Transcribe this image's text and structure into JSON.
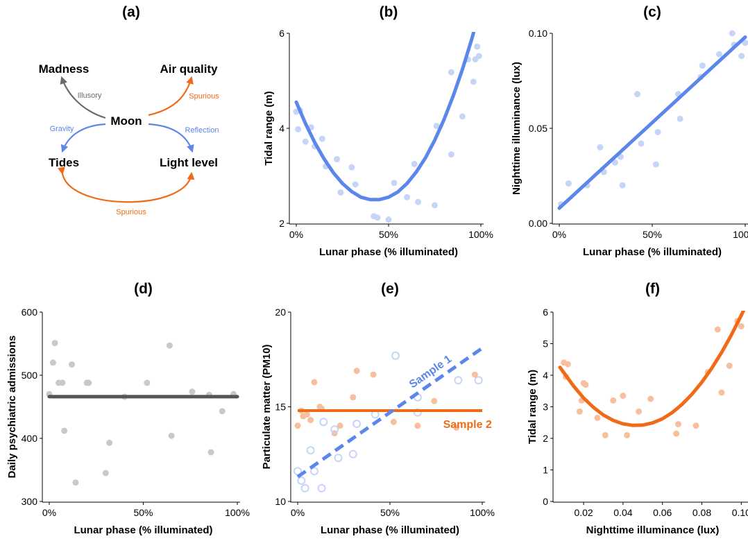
{
  "colors": {
    "blue": "#5b86ec",
    "blue_point": "#c5d4f7",
    "orange": "#f06a18",
    "orange_point": "#f8bf9e",
    "gray_line": "#555555",
    "gray_arrow": "#6b6b6b",
    "gray_point": "#c9c9c9"
  },
  "diagram": {
    "title": "(a)",
    "nodes": {
      "madness": "Madness",
      "air_quality": "Air quality",
      "moon": "Moon",
      "tides": "Tides",
      "light_level": "Light level"
    },
    "edges": {
      "illusory": "Illusory",
      "spurious_air": "Spurious",
      "gravity": "Gravity",
      "reflection": "Reflection",
      "spurious_bottom": "Spurious"
    }
  },
  "chart_data": [
    {
      "id": "b",
      "type": "scatter",
      "title": "(b)",
      "xlabel": "Lunar phase (% illuminated)",
      "ylabel": "Tidal range (m)",
      "xlim": [
        0,
        1
      ],
      "ylim": [
        2,
        6
      ],
      "xticks": [
        0,
        0.5,
        1
      ],
      "xtick_labels": [
        "0%",
        "50%",
        "100%"
      ],
      "yticks": [
        2,
        4,
        6
      ],
      "ytick_labels": [
        "2",
        "4",
        "6"
      ],
      "points": [
        [
          0.0,
          4.35
        ],
        [
          0.02,
          4.38
        ],
        [
          0.01,
          3.98
        ],
        [
          0.05,
          3.72
        ],
        [
          0.08,
          4.02
        ],
        [
          0.1,
          3.62
        ],
        [
          0.14,
          3.78
        ],
        [
          0.16,
          3.2
        ],
        [
          0.22,
          3.35
        ],
        [
          0.24,
          2.65
        ],
        [
          0.3,
          3.18
        ],
        [
          0.32,
          2.82
        ],
        [
          0.42,
          2.15
        ],
        [
          0.44,
          2.12
        ],
        [
          0.5,
          2.08
        ],
        [
          0.53,
          2.85
        ],
        [
          0.6,
          2.55
        ],
        [
          0.64,
          3.25
        ],
        [
          0.66,
          2.45
        ],
        [
          0.75,
          2.38
        ],
        [
          0.76,
          4.05
        ],
        [
          0.84,
          3.45
        ],
        [
          0.84,
          5.18
        ],
        [
          0.9,
          4.25
        ],
        [
          0.93,
          5.45
        ],
        [
          0.96,
          4.98
        ],
        [
          0.97,
          5.45
        ],
        [
          0.98,
          5.72
        ],
        [
          0.99,
          5.52
        ]
      ],
      "series": [
        {
          "kind": "curve",
          "x": [
            0,
            0.05,
            0.1,
            0.15,
            0.2,
            0.25,
            0.3,
            0.35,
            0.4,
            0.45,
            0.5,
            0.55,
            0.6,
            0.65,
            0.7,
            0.75,
            0.8,
            0.85,
            0.9,
            0.95,
            1.0
          ],
          "y": [
            4.55,
            4.1,
            3.7,
            3.36,
            3.07,
            2.84,
            2.67,
            2.55,
            2.5,
            2.5,
            2.55,
            2.66,
            2.84,
            3.08,
            3.38,
            3.75,
            4.18,
            4.68,
            5.24,
            5.87,
            6.56
          ]
        }
      ]
    },
    {
      "id": "c",
      "type": "scatter",
      "title": "(c)",
      "xlabel": "Lunar phase (% illuminated)",
      "ylabel": "Nighttime illuminance (lux)",
      "xlim": [
        0,
        1
      ],
      "ylim": [
        0,
        0.1
      ],
      "xticks": [
        0,
        0.5,
        1
      ],
      "xtick_labels": [
        "0%",
        "50%",
        "100%"
      ],
      "yticks": [
        0,
        0.05,
        0.1
      ],
      "ytick_labels": [
        "0.00",
        "0.05",
        "0.10"
      ],
      "points": [
        [
          0.01,
          0.01
        ],
        [
          0.05,
          0.021
        ],
        [
          0.15,
          0.02
        ],
        [
          0.22,
          0.04
        ],
        [
          0.24,
          0.027
        ],
        [
          0.3,
          0.032
        ],
        [
          0.33,
          0.035
        ],
        [
          0.34,
          0.02
        ],
        [
          0.42,
          0.068
        ],
        [
          0.44,
          0.042
        ],
        [
          0.52,
          0.031
        ],
        [
          0.53,
          0.048
        ],
        [
          0.64,
          0.068
        ],
        [
          0.65,
          0.055
        ],
        [
          0.76,
          0.077
        ],
        [
          0.77,
          0.083
        ],
        [
          0.86,
          0.089
        ],
        [
          0.93,
          0.1
        ],
        [
          0.94,
          0.094
        ],
        [
          0.98,
          0.088
        ],
        [
          1.0,
          0.095
        ]
      ],
      "series": [
        {
          "kind": "line",
          "x": [
            0,
            1
          ],
          "y": [
            0.008,
            0.098
          ]
        }
      ]
    },
    {
      "id": "d",
      "type": "scatter",
      "title": "(d)",
      "xlabel": "Lunar phase (% illuminated)",
      "ylabel": "Daily psychiatric admissions",
      "xlim": [
        0,
        1
      ],
      "ylim": [
        300,
        600
      ],
      "xticks": [
        0,
        0.5,
        1
      ],
      "xtick_labels": [
        "0%",
        "50%",
        "100%"
      ],
      "yticks": [
        300,
        400,
        500,
        600
      ],
      "ytick_labels": [
        "300",
        "400",
        "500",
        "600"
      ],
      "points": [
        [
          0.0,
          470
        ],
        [
          0.02,
          520
        ],
        [
          0.03,
          551
        ],
        [
          0.05,
          488
        ],
        [
          0.07,
          488
        ],
        [
          0.08,
          412
        ],
        [
          0.12,
          517
        ],
        [
          0.14,
          330
        ],
        [
          0.2,
          488
        ],
        [
          0.21,
          488
        ],
        [
          0.3,
          345
        ],
        [
          0.32,
          393
        ],
        [
          0.4,
          466
        ],
        [
          0.52,
          488
        ],
        [
          0.64,
          547
        ],
        [
          0.65,
          404
        ],
        [
          0.76,
          474
        ],
        [
          0.85,
          469
        ],
        [
          0.86,
          378
        ],
        [
          0.92,
          443
        ],
        [
          0.98,
          470
        ]
      ],
      "series": [
        {
          "kind": "line",
          "x": [
            0,
            1
          ],
          "y": [
            466,
            466
          ]
        }
      ]
    },
    {
      "id": "e",
      "type": "scatter",
      "title": "(e)",
      "xlabel": "Lunar phase (% illuminated)",
      "ylabel": "Particulate matter (PM10)",
      "xlim": [
        0,
        1
      ],
      "ylim": [
        10,
        20
      ],
      "xticks": [
        0,
        0.5,
        1
      ],
      "xtick_labels": [
        "0%",
        "50%",
        "100%"
      ],
      "yticks": [
        10,
        15,
        20
      ],
      "ytick_labels": [
        "10",
        "15",
        "20"
      ],
      "series": [
        {
          "name": "Sample 1",
          "kind": "dashed-line",
          "x": [
            0,
            1
          ],
          "y": [
            11.3,
            18.1
          ],
          "points": [
            [
              0.0,
              11.6
            ],
            [
              0.02,
              11.1
            ],
            [
              0.04,
              10.7
            ],
            [
              0.07,
              12.7
            ],
            [
              0.09,
              11.6
            ],
            [
              0.13,
              10.7
            ],
            [
              0.14,
              14.2
            ],
            [
              0.2,
              13.8
            ],
            [
              0.22,
              12.3
            ],
            [
              0.3,
              12.5
            ],
            [
              0.32,
              14.1
            ],
            [
              0.42,
              14.6
            ],
            [
              0.53,
              17.7
            ],
            [
              0.65,
              15.5
            ],
            [
              0.65,
              14.7
            ],
            [
              0.87,
              16.4
            ],
            [
              0.98,
              16.4
            ]
          ]
        },
        {
          "name": "Sample 2",
          "kind": "line",
          "x": [
            0,
            1
          ],
          "y": [
            14.8,
            14.8
          ],
          "points": [
            [
              0.0,
              14.0
            ],
            [
              0.02,
              14.8
            ],
            [
              0.03,
              14.5
            ],
            [
              0.05,
              14.6
            ],
            [
              0.07,
              14.3
            ],
            [
              0.09,
              16.3
            ],
            [
              0.12,
              15.0
            ],
            [
              0.13,
              14.9
            ],
            [
              0.2,
              13.6
            ],
            [
              0.23,
              14.0
            ],
            [
              0.3,
              15.5
            ],
            [
              0.32,
              16.9
            ],
            [
              0.41,
              16.7
            ],
            [
              0.52,
              14.2
            ],
            [
              0.65,
              14.0
            ],
            [
              0.74,
              15.3
            ],
            [
              0.86,
              13.9
            ],
            [
              0.96,
              16.7
            ]
          ]
        }
      ]
    },
    {
      "id": "f",
      "type": "scatter",
      "title": "(f)",
      "xlabel": "Nighttime illuminance (lux)",
      "ylabel": "Tidal range (m)",
      "xlim": [
        0.008,
        0.102
      ],
      "ylim": [
        0,
        6
      ],
      "xticks": [
        0.02,
        0.04,
        0.06,
        0.08,
        0.1
      ],
      "xtick_labels": [
        "0.02",
        "0.04",
        "0.06",
        "0.08",
        "0.10"
      ],
      "yticks": [
        0,
        1,
        2,
        3,
        4,
        5,
        6
      ],
      "ytick_labels": [
        "0",
        "1",
        "2",
        "3",
        "4",
        "5",
        "6"
      ],
      "points": [
        [
          0.01,
          4.4
        ],
        [
          0.011,
          3.95
        ],
        [
          0.012,
          4.35
        ],
        [
          0.018,
          2.85
        ],
        [
          0.019,
          3.2
        ],
        [
          0.02,
          3.75
        ],
        [
          0.021,
          3.7
        ],
        [
          0.027,
          2.65
        ],
        [
          0.031,
          2.1
        ],
        [
          0.035,
          3.2
        ],
        [
          0.04,
          3.35
        ],
        [
          0.042,
          2.1
        ],
        [
          0.048,
          2.85
        ],
        [
          0.054,
          3.25
        ],
        [
          0.067,
          2.15
        ],
        [
          0.068,
          2.45
        ],
        [
          0.077,
          2.4
        ],
        [
          0.083,
          4.1
        ],
        [
          0.088,
          5.45
        ],
        [
          0.09,
          3.45
        ],
        [
          0.094,
          4.3
        ],
        [
          0.098,
          5.72
        ],
        [
          0.1,
          5.55
        ]
      ],
      "series": [
        {
          "kind": "curve",
          "x": [
            0.008,
            0.015,
            0.02,
            0.025,
            0.03,
            0.035,
            0.04,
            0.045,
            0.05,
            0.055,
            0.06,
            0.065,
            0.07,
            0.075,
            0.08,
            0.085,
            0.09,
            0.095,
            0.1,
            0.102
          ],
          "y": [
            4.25,
            3.65,
            3.28,
            2.98,
            2.74,
            2.57,
            2.46,
            2.41,
            2.42,
            2.49,
            2.62,
            2.82,
            3.08,
            3.4,
            3.78,
            4.22,
            4.72,
            5.28,
            5.9,
            6.16
          ]
        }
      ]
    }
  ]
}
